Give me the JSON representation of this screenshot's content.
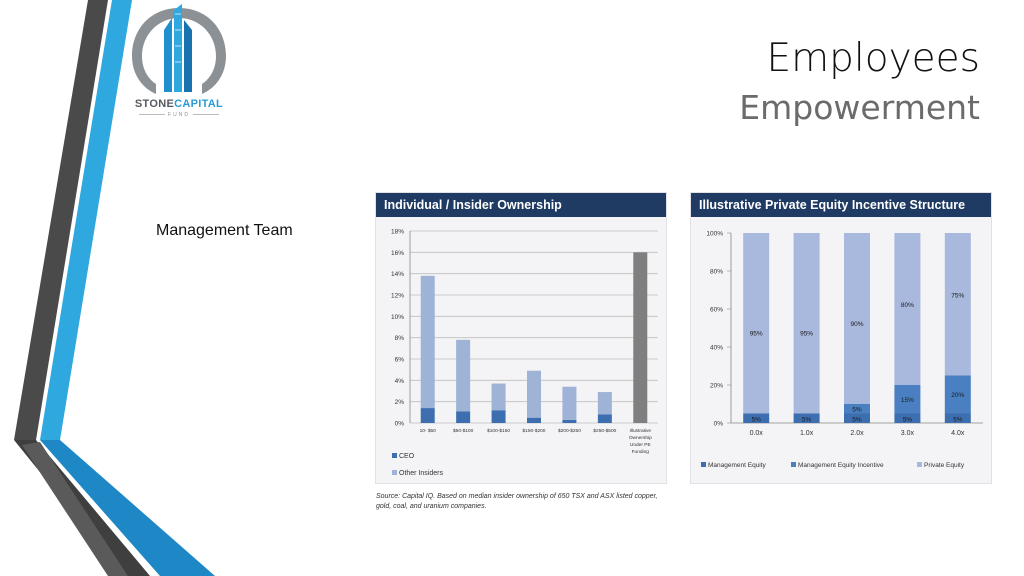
{
  "logo": {
    "brand_part1": "STONE",
    "brand_part2": "CAPITAL",
    "brand_sub": "FUND"
  },
  "slide": {
    "title": "Employees",
    "subtitle": "Empowerment",
    "side_label": "Management Team"
  },
  "colors": {
    "stripe_dark": "#4a4a4a",
    "stripe_blue": "#2fa8e0",
    "header": "#1f3a63",
    "ceo": "#3d6fb0",
    "other": "#9fb3d6",
    "illustrative": "#7f7f7f",
    "mgmt_equity": "#3d6fb0",
    "mgmt_incentive": "#4a7fc1",
    "pe_equity": "#a9b8dd"
  },
  "chart_data": [
    {
      "type": "bar",
      "stacked": true,
      "title": "Individual / Insider Ownership",
      "categories": [
        "10- $50",
        "$50-$100",
        "$100-$150",
        "$150-$200",
        "$200-$250",
        "$250-$500",
        "Illustrative Ownership Under PE Funding"
      ],
      "series": [
        {
          "name": "CEO",
          "values": [
            1.4,
            1.1,
            1.2,
            0.5,
            0.3,
            0.8,
            0
          ]
        },
        {
          "name": "Other Insiders",
          "values": [
            12.4,
            6.7,
            2.5,
            4.4,
            3.1,
            2.1,
            0
          ]
        },
        {
          "name": "",
          "values": [
            0,
            0,
            0,
            0,
            0,
            0,
            16.0
          ]
        }
      ],
      "ylim": [
        0,
        18
      ],
      "yticks": [
        "0%",
        "2%",
        "4%",
        "6%",
        "8%",
        "10%",
        "12%",
        "14%",
        "16%",
        "18%"
      ],
      "grid": true,
      "legend": "bottom-left"
    },
    {
      "type": "bar",
      "stacked": true,
      "title": "Illustrative Private Equity Incentive Structure",
      "categories": [
        "0.0x",
        "1.0x",
        "2.0x",
        "3.0x",
        "4.0x"
      ],
      "series": [
        {
          "name": "Management Equity",
          "values": [
            5,
            5,
            5,
            5,
            5
          ],
          "labels": [
            "5%",
            "5%",
            "5%",
            "5%",
            "5%"
          ]
        },
        {
          "name": "Management Equity Incentive",
          "values": [
            0,
            0,
            5,
            15,
            20
          ],
          "labels": [
            "",
            "",
            "5%",
            "15%",
            "20%"
          ]
        },
        {
          "name": "Private Equity",
          "values": [
            95,
            95,
            90,
            80,
            75
          ],
          "labels": [
            "95%",
            "95%",
            "90%",
            "80%",
            "75%"
          ]
        }
      ],
      "ylim": [
        0,
        100
      ],
      "yticks": [
        "0%",
        "20%",
        "40%",
        "60%",
        "80%",
        "100%"
      ],
      "grid": false,
      "legend": "bottom"
    }
  ],
  "source_note": "Source: Capital IQ. Based on median insider ownership of 650 TSX and ASX listed copper, gold, coal, and uranium companies."
}
